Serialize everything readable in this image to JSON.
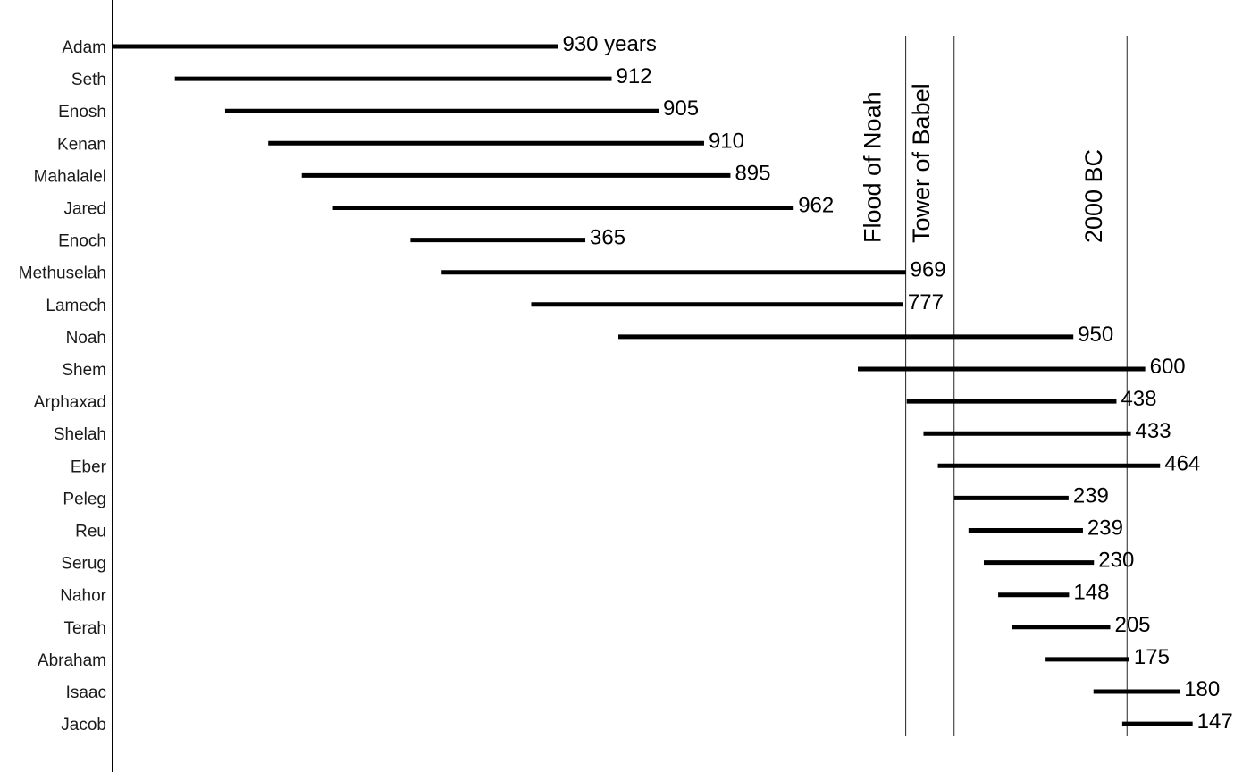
{
  "chart_data": {
    "type": "bar",
    "subtype": "timeline-gantt",
    "x_unit": "years after creation",
    "xlim": [
      0,
      2300
    ],
    "grid": false,
    "colors": {
      "bar": "#000000",
      "line": "#222222",
      "text": "#000000"
    },
    "series": [
      {
        "name": "Adam",
        "start": 0,
        "end": 930,
        "label": "930 years"
      },
      {
        "name": "Seth",
        "start": 130,
        "end": 1042,
        "label": "912"
      },
      {
        "name": "Enosh",
        "start": 235,
        "end": 1140,
        "label": "905"
      },
      {
        "name": "Kenan",
        "start": 325,
        "end": 1235,
        "label": "910"
      },
      {
        "name": "Mahalalel",
        "start": 395,
        "end": 1290,
        "label": "895"
      },
      {
        "name": "Jared",
        "start": 460,
        "end": 1422,
        "label": "962"
      },
      {
        "name": "Enoch",
        "start": 622,
        "end": 987,
        "label": "365"
      },
      {
        "name": "Methuselah",
        "start": 687,
        "end": 1656,
        "label": "969"
      },
      {
        "name": "Lamech",
        "start": 874,
        "end": 1651,
        "label": "777"
      },
      {
        "name": "Noah",
        "start": 1056,
        "end": 2006,
        "label": "950"
      },
      {
        "name": "Shem",
        "start": 1556,
        "end": 2156,
        "label": "600"
      },
      {
        "name": "Arphaxad",
        "start": 1658,
        "end": 2096,
        "label": "438"
      },
      {
        "name": "Shelah",
        "start": 1693,
        "end": 2126,
        "label": "433"
      },
      {
        "name": "Eber",
        "start": 1723,
        "end": 2187,
        "label": "464"
      },
      {
        "name": "Peleg",
        "start": 1757,
        "end": 1996,
        "label": "239"
      },
      {
        "name": "Reu",
        "start": 1787,
        "end": 2026,
        "label": "239"
      },
      {
        "name": "Serug",
        "start": 1819,
        "end": 2049,
        "label": "230"
      },
      {
        "name": "Nahor",
        "start": 1849,
        "end": 1997,
        "label": "148"
      },
      {
        "name": "Terah",
        "start": 1878,
        "end": 2083,
        "label": "205"
      },
      {
        "name": "Abraham",
        "start": 1948,
        "end": 2123,
        "label": "175"
      },
      {
        "name": "Isaac",
        "start": 2048,
        "end": 2228,
        "label": "180"
      },
      {
        "name": "Jacob",
        "start": 2108,
        "end": 2255,
        "label": "147"
      }
    ],
    "events": [
      {
        "label": "Flood of Noah",
        "x": 1656
      },
      {
        "label": "Tower of Babel",
        "x": 1757
      },
      {
        "label": "2000 BC",
        "x": 2118
      }
    ]
  }
}
